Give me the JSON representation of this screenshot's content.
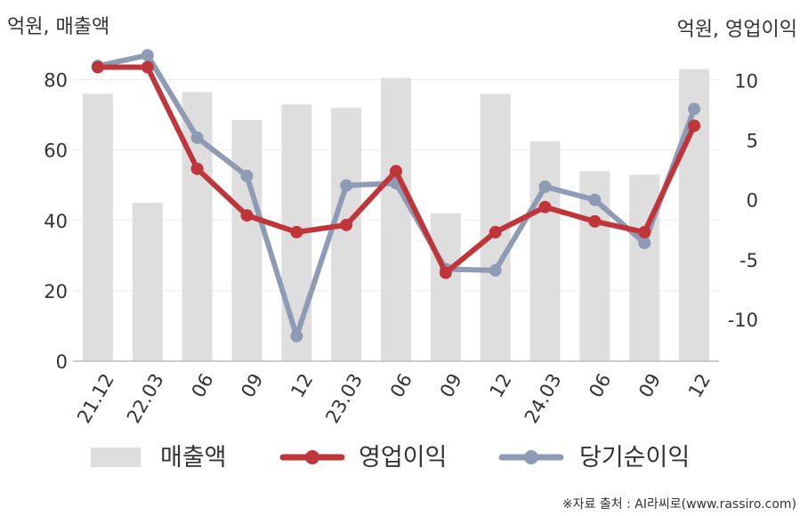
{
  "chart_data": {
    "type": "bar+line",
    "left_axis_unit": "억원, 매출액",
    "right_axis_unit": "억원, 영업이익",
    "source": "※자료 출처 : AI라씨로(www.rassiro.com)",
    "categories": [
      "21.12",
      "22.03",
      "06",
      "09",
      "12",
      "23.03",
      "06",
      "09",
      "12",
      "24.03",
      "06",
      "09",
      "12"
    ],
    "left_axis": {
      "range": [
        0,
        90
      ],
      "ticks": [
        0,
        20,
        40,
        60,
        80
      ]
    },
    "right_axis": {
      "range": [
        -13.5,
        13
      ],
      "ticks": [
        -10,
        -5,
        0,
        5,
        10
      ]
    },
    "grid": true,
    "legend_position": "bottom",
    "series": [
      {
        "name": "매출액",
        "kind": "bar",
        "axis": "left",
        "color": "#dedede",
        "values": [
          76,
          45,
          76.5,
          68.5,
          73,
          72,
          80.5,
          42,
          76,
          62.5,
          54,
          53,
          83
        ]
      },
      {
        "name": "영업이익",
        "kind": "line",
        "axis": "right",
        "color": "#c0353a",
        "values": [
          11.1,
          11.1,
          2.6,
          -1.3,
          -2.7,
          -2.1,
          2.4,
          -6.1,
          -2.7,
          -0.6,
          -1.8,
          -2.7,
          6.2
        ]
      },
      {
        "name": "당기순이익",
        "kind": "line",
        "axis": "right",
        "color": "#8e9bb5",
        "values": [
          11.2,
          12.1,
          5.2,
          2.0,
          -11.4,
          1.2,
          1.4,
          -5.8,
          -5.9,
          1.1,
          0.0,
          -3.6,
          7.6
        ]
      }
    ]
  }
}
